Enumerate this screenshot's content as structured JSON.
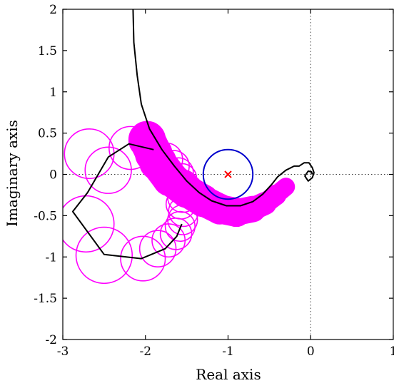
{
  "chart_data": {
    "type": "scatter",
    "title": "",
    "xlabel": "Real axis",
    "ylabel": "Imaginary axis",
    "xlim": [
      -3,
      1
    ],
    "ylim": [
      -2,
      2
    ],
    "x_ticks": [
      "-3",
      "-2",
      "-1",
      "0",
      "1"
    ],
    "y_ticks": [
      "2",
      "1.5",
      "1",
      "0.5",
      "0",
      "-0.5",
      "-1",
      "-1.5",
      "-2"
    ],
    "x_tick_values": [
      -3,
      -2,
      -1,
      0,
      1
    ],
    "y_tick_values": [
      2,
      1.5,
      1,
      0.5,
      0,
      -0.5,
      -1,
      -1.5,
      -2
    ],
    "grid": "dotted lines through origin",
    "colors": {
      "nyquist": "#000000",
      "uncertainty_discs": "#ff00ff",
      "unit_circle": "#0000cc",
      "critical_point": "#ff0000"
    },
    "critical_point": {
      "x": -1,
      "y": 0,
      "marker": "x"
    },
    "unit_circle": {
      "center": [
        -1,
        0
      ],
      "radius": 0.3
    },
    "nyquist_curve": [
      [
        -2.15,
        2.0
      ],
      [
        -2.14,
        1.6
      ],
      [
        -2.1,
        1.2
      ],
      [
        -2.05,
        0.85
      ],
      [
        -1.95,
        0.55
      ],
      [
        -1.8,
        0.3
      ],
      [
        -1.65,
        0.1
      ],
      [
        -1.5,
        -0.08
      ],
      [
        -1.35,
        -0.22
      ],
      [
        -1.2,
        -0.32
      ],
      [
        -1.02,
        -0.38
      ],
      [
        -0.85,
        -0.38
      ],
      [
        -0.7,
        -0.33
      ],
      [
        -0.58,
        -0.24
      ],
      [
        -0.47,
        -0.12
      ],
      [
        -0.4,
        -0.03
      ],
      [
        -0.3,
        0.05
      ],
      [
        -0.2,
        0.1
      ],
      [
        -0.14,
        0.1
      ],
      [
        -0.08,
        0.14
      ],
      [
        -0.02,
        0.14
      ],
      [
        0.02,
        0.08
      ],
      [
        0.04,
        0.02
      ],
      [
        0.02,
        -0.04
      ],
      [
        -0.03,
        -0.08
      ],
      [
        -0.07,
        -0.02
      ],
      [
        -0.03,
        0.04
      ],
      [
        0.01,
        0.03
      ],
      [
        0.02,
        0.0
      ]
    ],
    "nyquist_lower_polygon": [
      [
        -1.56,
        -0.6
      ],
      [
        -1.62,
        -0.75
      ],
      [
        -1.76,
        -0.9
      ],
      [
        -2.05,
        -1.02
      ],
      [
        -2.5,
        -0.97
      ],
      [
        -2.88,
        -0.45
      ],
      [
        -2.7,
        -0.22
      ],
      [
        -2.45,
        0.21
      ],
      [
        -2.2,
        0.37
      ],
      [
        -1.9,
        0.3
      ]
    ],
    "uncertainty_discs": [
      {
        "x": -2.45,
        "y": 0.05,
        "r": 0.28
      },
      {
        "x": -2.68,
        "y": 0.25,
        "r": 0.3
      },
      {
        "x": -2.72,
        "y": -0.6,
        "r": 0.34
      },
      {
        "x": -2.5,
        "y": -0.98,
        "r": 0.34
      },
      {
        "x": -2.18,
        "y": 0.32,
        "r": 0.26
      },
      {
        "x": -2.03,
        "y": -1.02,
        "r": 0.27
      },
      {
        "x": -1.9,
        "y": 0.25,
        "r": 0.22
      },
      {
        "x": -1.85,
        "y": -0.9,
        "r": 0.22
      },
      {
        "x": -1.75,
        "y": 0.18,
        "r": 0.2
      },
      {
        "x": -1.72,
        "y": -0.8,
        "r": 0.2
      },
      {
        "x": -1.66,
        "y": 0.1,
        "r": 0.19
      },
      {
        "x": -1.63,
        "y": -0.72,
        "r": 0.19
      },
      {
        "x": -1.6,
        "y": 0.02,
        "r": 0.18
      },
      {
        "x": -1.58,
        "y": -0.63,
        "r": 0.18
      },
      {
        "x": -1.56,
        "y": -0.05,
        "r": 0.18
      },
      {
        "x": -1.55,
        "y": -0.55,
        "r": 0.18
      },
      {
        "x": -1.54,
        "y": -0.13,
        "r": 0.18
      },
      {
        "x": -1.54,
        "y": -0.45,
        "r": 0.18
      },
      {
        "x": -1.55,
        "y": -0.28,
        "r": 0.18
      },
      {
        "x": -1.57,
        "y": -0.36,
        "r": 0.18
      }
    ],
    "uncertainty_band": [
      [
        -1.98,
        0.42
      ],
      [
        -1.85,
        0.15
      ],
      [
        -1.7,
        -0.05
      ],
      [
        -1.5,
        -0.2
      ],
      [
        -1.3,
        -0.32
      ],
      [
        -1.1,
        -0.42
      ],
      [
        -0.9,
        -0.46
      ],
      [
        -0.7,
        -0.42
      ],
      [
        -0.55,
        -0.35
      ],
      [
        -0.42,
        -0.25
      ],
      [
        -0.3,
        -0.15
      ]
    ],
    "uncertainty_band_width": [
      0.22,
      0.22,
      0.21,
      0.2,
      0.19,
      0.18,
      0.17,
      0.15,
      0.13,
      0.12,
      0.1
    ]
  }
}
